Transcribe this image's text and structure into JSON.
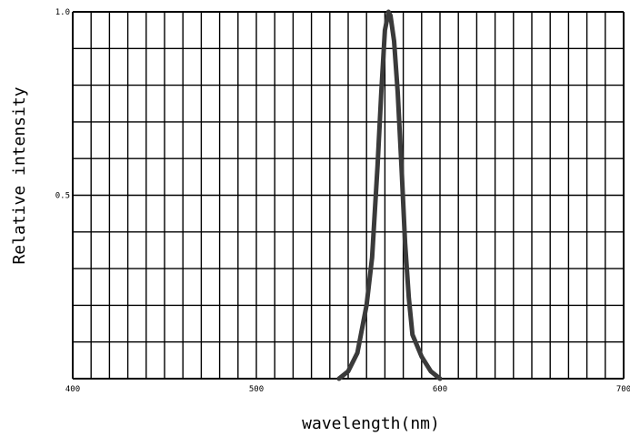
{
  "chart_data": {
    "type": "line",
    "title": "",
    "xlabel": "wavelength(nm)",
    "ylabel": "Relative intensity",
    "xlim": [
      400,
      700
    ],
    "ylim": [
      0,
      1.0
    ],
    "x_ticks": [
      {
        "value": 400,
        "label": "400"
      },
      {
        "value": 500,
        "label": "500"
      },
      {
        "value": 600,
        "label": "600"
      },
      {
        "value": 700,
        "label": "700"
      }
    ],
    "y_ticks": [
      {
        "value": 0.5,
        "label": "0.5"
      },
      {
        "value": 1.0,
        "label": "1.0"
      }
    ],
    "grid": true,
    "grid_x_step": 10,
    "grid_y_step": 0.1,
    "colors": {
      "grid": "#000000",
      "line": "#3a3a3a",
      "background": "#ffffff"
    },
    "series": [
      {
        "x": [
          545,
          550,
          555,
          560,
          563,
          566,
          568,
          570,
          572,
          573,
          575,
          577,
          579,
          581,
          583,
          585,
          590,
          595,
          600
        ],
        "y": [
          0.0,
          0.02,
          0.07,
          0.2,
          0.33,
          0.58,
          0.78,
          0.95,
          1.0,
          0.99,
          0.92,
          0.78,
          0.58,
          0.37,
          0.22,
          0.12,
          0.06,
          0.02,
          0.0
        ]
      }
    ]
  }
}
